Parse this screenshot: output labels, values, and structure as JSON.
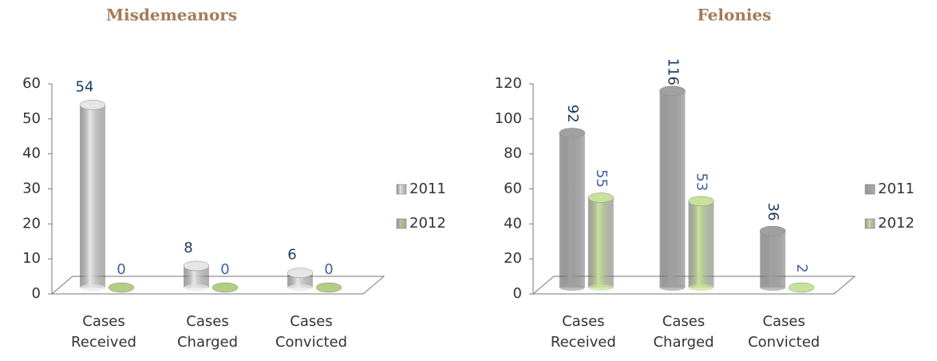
{
  "chart_data": [
    {
      "type": "bar",
      "title": "Misdemeanors",
      "categories": [
        "Cases Received",
        "Cases Charged",
        "Cases Convicted"
      ],
      "series": [
        {
          "name": "2011",
          "color": "#e6e6e6",
          "values": [
            54,
            8,
            6
          ]
        },
        {
          "name": "2012",
          "color": "#b5cc85",
          "values": [
            0,
            0,
            0
          ]
        }
      ],
      "ylim": [
        0,
        60
      ],
      "yticks": [
        0,
        10,
        20,
        30,
        40,
        50,
        60
      ],
      "legend": "right",
      "rotated_labels": false
    },
    {
      "type": "bar",
      "title": "Felonies",
      "categories": [
        "Cases Received",
        "Cases Charged",
        "Cases Convicted"
      ],
      "series": [
        {
          "name": "2011",
          "color": "#a0a0a0",
          "values": [
            92,
            116,
            36
          ]
        },
        {
          "name": "2012",
          "color": "#c8e29a",
          "values": [
            55,
            53,
            2
          ]
        }
      ],
      "ylim": [
        0,
        120
      ],
      "yticks": [
        0,
        20,
        40,
        60,
        80,
        100,
        120
      ],
      "legend": "right",
      "rotated_labels": true
    }
  ]
}
